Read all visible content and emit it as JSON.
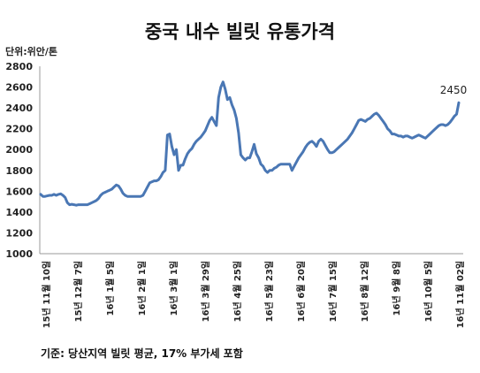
{
  "chart_data": {
    "type": "line",
    "title": "중국 내수 빌릿 유통가격",
    "unit_label": "단위:위안/톤",
    "note": "기준: 당산지역 빌릿 평균, 17% 부가세 포함",
    "end_label": "2450",
    "ylim": [
      1000,
      2800
    ],
    "yticks": [
      "2800",
      "2600",
      "2400",
      "2200",
      "2000",
      "1800",
      "1600",
      "1400",
      "1200",
      "1000"
    ],
    "grid": false,
    "xticks": [
      "15년 11월 10일",
      "15년 12월 7일",
      "16년 1월 5일",
      "16년 2월 1일",
      "16년 3월 1일",
      "16년 3월 29일",
      "16년 4월 25일",
      "16년 5월 23일",
      "16년 6월 20일",
      "16년 7월 15일",
      "16년 8월 12일",
      "16년 9월 8일",
      "16년 10월 5일",
      "16년 11월 02일"
    ],
    "color": "#4a77b4",
    "series": [
      {
        "values": [
          1570,
          1550,
          1550,
          1555,
          1560,
          1560,
          1570,
          1560,
          1570,
          1575,
          1560,
          1540,
          1490,
          1470,
          1475,
          1470,
          1465,
          1470,
          1470,
          1470,
          1470,
          1470,
          1480,
          1490,
          1500,
          1510,
          1530,
          1560,
          1580,
          1590,
          1600,
          1610,
          1620,
          1640,
          1660,
          1650,
          1620,
          1580,
          1560,
          1550,
          1550,
          1550,
          1550,
          1550,
          1550,
          1550,
          1560,
          1600,
          1640,
          1680,
          1690,
          1700,
          1700,
          1710,
          1740,
          1780,
          1800,
          2140,
          2150,
          2030,
          1950,
          2000,
          1800,
          1850,
          1850,
          1910,
          1960,
          1990,
          2010,
          2050,
          2080,
          2100,
          2120,
          2150,
          2180,
          2230,
          2280,
          2310,
          2270,
          2230,
          2500,
          2600,
          2650,
          2580,
          2480,
          2500,
          2430,
          2380,
          2300,
          2160,
          1950,
          1920,
          1900,
          1920,
          1920,
          1980,
          2050,
          1960,
          1920,
          1860,
          1840,
          1800,
          1780,
          1800,
          1800,
          1820,
          1830,
          1850,
          1860,
          1860,
          1860,
          1860,
          1860,
          1800,
          1840,
          1880,
          1920,
          1950,
          1980,
          2020,
          2050,
          2070,
          2080,
          2060,
          2030,
          2080,
          2100,
          2080,
          2040,
          2000,
          1970,
          1970,
          1980,
          2000,
          2020,
          2040,
          2060,
          2080,
          2100,
          2130,
          2160,
          2200,
          2240,
          2280,
          2290,
          2280,
          2270,
          2290,
          2300,
          2320,
          2340,
          2350,
          2330,
          2300,
          2270,
          2240,
          2200,
          2180,
          2150,
          2150,
          2140,
          2130,
          2130,
          2120,
          2130,
          2130,
          2120,
          2110,
          2120,
          2130,
          2140,
          2130,
          2120,
          2110,
          2130,
          2150,
          2170,
          2190,
          2210,
          2230,
          2240,
          2240,
          2230,
          2240,
          2260,
          2290,
          2320,
          2340,
          2450
        ]
      }
    ]
  }
}
